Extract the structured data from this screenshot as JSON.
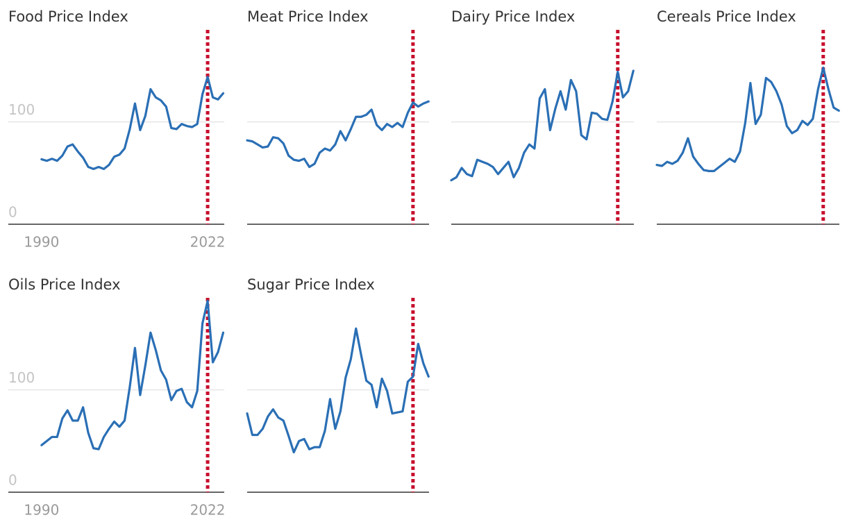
{
  "chart_data": [
    {
      "type": "line",
      "title": "Food Price Index",
      "color": "#2a6fb5",
      "marker_x": 2022,
      "marker_color": "#c8102e",
      "tick_labels": true,
      "x": [
        1990,
        1991,
        1992,
        1993,
        1994,
        1995,
        1996,
        1997,
        1998,
        1999,
        2000,
        2001,
        2002,
        2003,
        2004,
        2005,
        2006,
        2007,
        2008,
        2009,
        2010,
        2011,
        2012,
        2013,
        2014,
        2015,
        2016,
        2017,
        2018,
        2019,
        2020,
        2021,
        2022,
        2023,
        2024,
        2025
      ],
      "values": [
        63.5,
        62,
        64,
        62,
        67,
        76,
        78,
        71,
        65,
        56,
        54,
        56,
        54,
        58,
        66,
        68,
        74,
        93,
        118,
        92,
        106,
        132,
        124,
        121,
        115,
        94,
        93,
        98,
        96,
        95,
        98,
        127,
        144,
        124,
        122,
        128
      ],
      "xlim": [
        1983.6,
        2025.2
      ],
      "xticks": [
        1990,
        2022
      ],
      "ylim": [
        0,
        190
      ],
      "yticks": [
        0,
        100
      ]
    },
    {
      "type": "line",
      "title": "Meat Price Index",
      "color": "#2a6fb5",
      "marker_x": 2022,
      "marker_color": "#c8102e",
      "tick_labels": false,
      "x": [
        1990,
        1991,
        1992,
        1993,
        1994,
        1995,
        1996,
        1997,
        1998,
        1999,
        2000,
        2001,
        2002,
        2003,
        2004,
        2005,
        2006,
        2007,
        2008,
        2009,
        2010,
        2011,
        2012,
        2013,
        2014,
        2015,
        2016,
        2017,
        2018,
        2019,
        2020,
        2021,
        2022,
        2023,
        2024,
        2025
      ],
      "values": [
        82,
        81,
        78,
        75,
        76,
        85,
        84,
        79,
        67,
        63,
        62,
        64,
        56,
        59,
        70,
        74,
        72,
        78,
        91,
        82,
        93,
        105,
        105,
        107,
        112,
        97,
        92,
        98,
        95,
        99,
        95,
        109,
        119,
        115,
        118,
        120
      ],
      "xlim": [
        1990,
        2025.1
      ],
      "ylim": [
        0,
        190
      ],
      "yticks": [
        0,
        100
      ]
    },
    {
      "type": "line",
      "title": "Dairy Price Index",
      "color": "#2a6fb5",
      "marker_x": 2022,
      "marker_color": "#c8102e",
      "tick_labels": false,
      "x": [
        1990,
        1991,
        1992,
        1993,
        1994,
        1995,
        1996,
        1997,
        1998,
        1999,
        2000,
        2001,
        2002,
        2003,
        2004,
        2005,
        2006,
        2007,
        2008,
        2009,
        2010,
        2011,
        2012,
        2013,
        2014,
        2015,
        2016,
        2017,
        2018,
        2019,
        2020,
        2021,
        2022,
        2023,
        2024,
        2025
      ],
      "values": [
        43,
        46,
        55,
        49,
        47,
        63,
        61,
        59,
        56,
        49,
        55,
        61,
        46,
        55,
        70,
        78,
        74,
        123,
        132,
        92,
        113,
        130,
        112,
        141,
        130,
        87,
        83,
        109,
        108,
        103,
        102,
        120,
        149,
        124,
        130,
        150
      ],
      "xlim": [
        1990,
        2025.1
      ],
      "ylim": [
        0,
        190
      ],
      "yticks": [
        0,
        100
      ]
    },
    {
      "type": "line",
      "title": "Cereals Price Index",
      "color": "#2a6fb5",
      "marker_x": 2022,
      "marker_color": "#c8102e",
      "tick_labels": false,
      "x": [
        1990,
        1991,
        1992,
        1993,
        1994,
        1995,
        1996,
        1997,
        1998,
        1999,
        2000,
        2001,
        2002,
        2003,
        2004,
        2005,
        2006,
        2007,
        2008,
        2009,
        2010,
        2011,
        2012,
        2013,
        2014,
        2015,
        2016,
        2017,
        2018,
        2019,
        2020,
        2021,
        2022,
        2023,
        2024,
        2025
      ],
      "values": [
        58,
        57,
        61,
        59,
        62,
        70,
        84,
        66,
        59,
        53,
        52,
        52,
        56,
        60,
        64,
        61,
        71,
        99,
        138,
        98,
        107,
        143,
        139,
        130,
        117,
        96,
        89,
        92,
        101,
        97,
        103,
        132,
        153,
        132,
        114,
        111
      ],
      "xlim": [
        1990,
        2025.1
      ],
      "ylim": [
        0,
        190
      ],
      "yticks": [
        0,
        100
      ]
    },
    {
      "type": "line",
      "title": "Oils Price Index",
      "color": "#2a6fb5",
      "marker_x": 2022,
      "marker_color": "#c8102e",
      "tick_labels": true,
      "x": [
        1990,
        1991,
        1992,
        1993,
        1994,
        1995,
        1996,
        1997,
        1998,
        1999,
        2000,
        2001,
        2002,
        2003,
        2004,
        2005,
        2006,
        2007,
        2008,
        2009,
        2010,
        2011,
        2012,
        2013,
        2014,
        2015,
        2016,
        2017,
        2018,
        2019,
        2020,
        2021,
        2022,
        2023,
        2024,
        2025
      ],
      "values": [
        46,
        50,
        54,
        54,
        72,
        80,
        70,
        70,
        83,
        58,
        43,
        42,
        54,
        62,
        69,
        64,
        70,
        103,
        141,
        95,
        124,
        156,
        139,
        119,
        110,
        90,
        99,
        101,
        88,
        83,
        99,
        165,
        187,
        127,
        137,
        156
      ],
      "xlim": [
        1983.6,
        2025.2
      ],
      "xticks": [
        1990,
        2022
      ],
      "ylim": [
        0,
        190
      ],
      "yticks": [
        0,
        100
      ]
    },
    {
      "type": "line",
      "title": "Sugar Price Index",
      "color": "#2a6fb5",
      "marker_x": 2022,
      "marker_color": "#c8102e",
      "tick_labels": false,
      "x": [
        1990,
        1991,
        1992,
        1993,
        1994,
        1995,
        1996,
        1997,
        1998,
        1999,
        2000,
        2001,
        2002,
        2003,
        2004,
        2005,
        2006,
        2007,
        2008,
        2009,
        2010,
        2011,
        2012,
        2013,
        2014,
        2015,
        2016,
        2017,
        2018,
        2019,
        2020,
        2021,
        2022,
        2023,
        2024,
        2025
      ],
      "values": [
        77,
        56,
        56,
        62,
        74,
        81,
        73,
        70,
        55,
        39,
        50,
        52,
        42,
        44,
        44,
        60,
        91,
        62,
        79,
        112,
        130,
        160,
        134,
        109,
        105,
        83,
        111,
        99,
        77,
        78,
        79,
        108,
        113,
        145,
        126,
        113
      ],
      "xlim": [
        1990,
        2025.1
      ],
      "ylim": [
        0,
        190
      ],
      "yticks": [
        0,
        100
      ]
    }
  ]
}
